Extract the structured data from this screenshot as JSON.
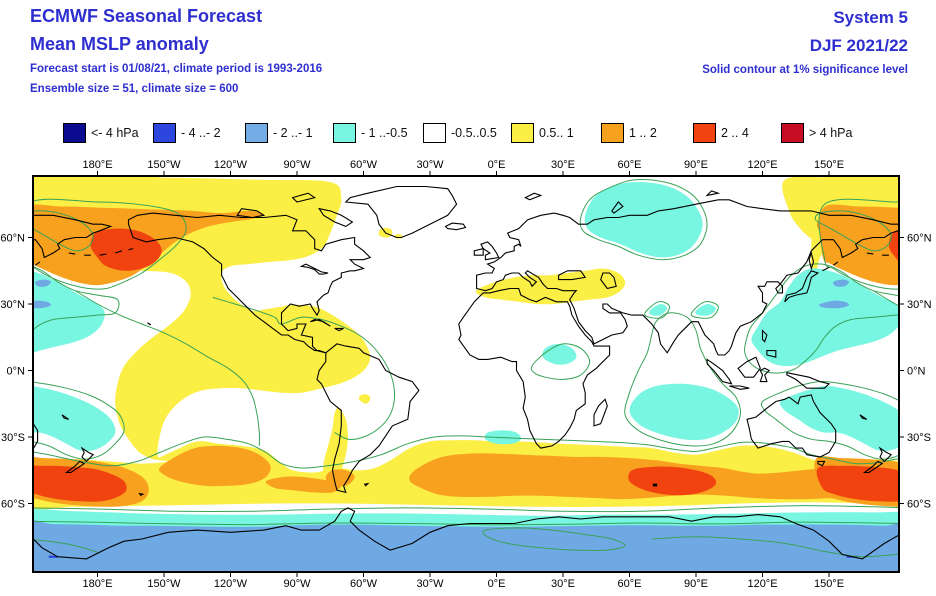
{
  "header": {
    "title": "ECMWF Seasonal Forecast",
    "subtitle": "Mean MSLP anomaly",
    "line3": "Forecast start is 01/08/21, climate period is 1993-2016",
    "line4": "Ensemble size = 51, climate size = 600",
    "system": "System 5",
    "season": "DJF 2021/22",
    "note": "Solid contour at 1% significance level"
  },
  "legend": {
    "items": [
      {
        "label": "<- 4 hPa",
        "color": "#0B0B8F"
      },
      {
        "label": "- 4 ..- 2",
        "color": "#2D46DD"
      },
      {
        "label": "- 2 ..- 1",
        "color": "#74ACE6"
      },
      {
        "label": "- 1 ..-0.5",
        "color": "#79F6E2"
      },
      {
        "label": "-0.5..0.5",
        "color": "#FFFFFF"
      },
      {
        "label": "0.5.. 1",
        "color": "#FBEE45"
      },
      {
        "label": "1 .. 2",
        "color": "#F7A11E"
      },
      {
        "label": "2 .. 4",
        "color": "#F0430F"
      },
      {
        "label": "> 4 hPa",
        "color": "#C60D24"
      }
    ]
  },
  "axes": {
    "top": [
      "180°E",
      "150°W",
      "120°W",
      "90°W",
      "60°W",
      "30°W",
      "0°E",
      "30°E",
      "60°E",
      "90°E",
      "120°E",
      "150°E"
    ],
    "bottom": [
      "180°E",
      "150°W",
      "120°W",
      "90°W",
      "60°W",
      "30°W",
      "0°E",
      "30°E",
      "60°E",
      "90°E",
      "120°E",
      "150°E"
    ],
    "left": [
      "60°N",
      "30°N",
      "0°N",
      "30°S",
      "60°S"
    ],
    "right": [
      "60°N",
      "30°N",
      "0°N",
      "30°S",
      "60°S"
    ]
  },
  "colors": {
    "title": "#2F2FD0",
    "contour": "#38A257",
    "coast": "#000000",
    "border": "#000000",
    "yellow": "#FBEE45",
    "orange": "#F7A11E",
    "red": "#F0430F",
    "darkred": "#C60D24",
    "cyan": "#79F6E2",
    "lightblue": "#6FA9E4",
    "blue": "#2D46DD",
    "navy": "#0B0B8F",
    "white": "#FFFFFF"
  }
}
